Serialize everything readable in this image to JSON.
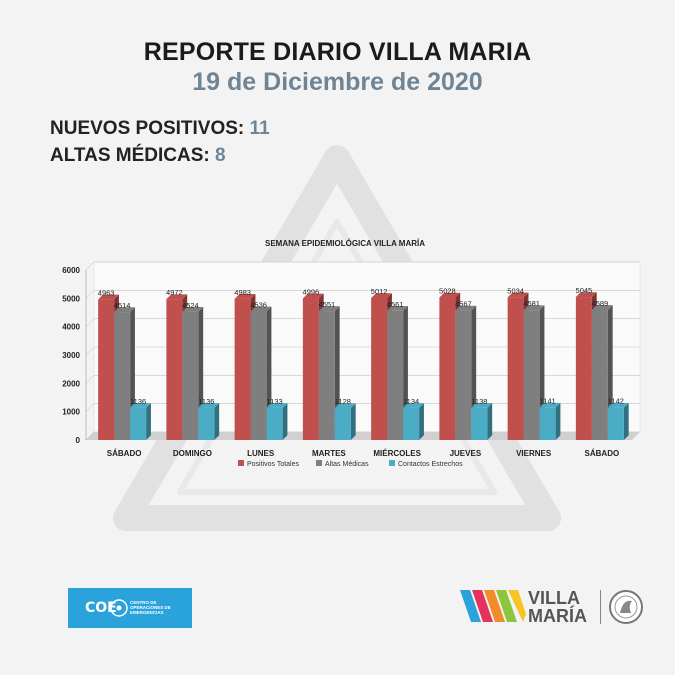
{
  "header": {
    "title": "REPORTE DIARIO VILLA MARIA",
    "date": "19 de Diciembre de 2020"
  },
  "stats": {
    "positivos_label": "NUEVOS POSITIVOS:",
    "positivos_value": "11",
    "altas_label": "ALTAS MÉDICAS:",
    "altas_value": "8"
  },
  "chart_data": {
    "type": "bar",
    "title": "SEMANA EPIDEMIOLÓGICA VILLA MARÍA",
    "categories": [
      "SÁBADO",
      "DOMINGO",
      "LUNES",
      "MARTES",
      "MIÉRCOLES",
      "JUEVES",
      "VIERNES",
      "SÁBADO"
    ],
    "ylim": [
      0,
      6000
    ],
    "yticks": [
      0,
      1000,
      2000,
      3000,
      4000,
      5000,
      6000
    ],
    "grid": true,
    "legend": "bottom",
    "series": [
      {
        "name": "Positivos Totales",
        "color": "#c0504d",
        "values": [
          4963,
          4972,
          4983,
          4996,
          5012,
          5028,
          5034,
          5045
        ]
      },
      {
        "name": "Altas Médicas",
        "color": "#7f7f7f",
        "values": [
          4514,
          4524,
          4536,
          4551,
          4561,
          4567,
          4581,
          4589
        ]
      },
      {
        "name": "Contactos Estrechos",
        "color": "#4bacc6",
        "values": [
          1136,
          1136,
          1133,
          1128,
          1134,
          1138,
          1141,
          1142
        ]
      }
    ]
  },
  "footer": {
    "coe_label": "COE",
    "coe_subtitle": "CENTRO DE OPERACIONES DE EMERGENCIAS",
    "brand_line1": "VILLA",
    "brand_line2": "MARÍA"
  }
}
